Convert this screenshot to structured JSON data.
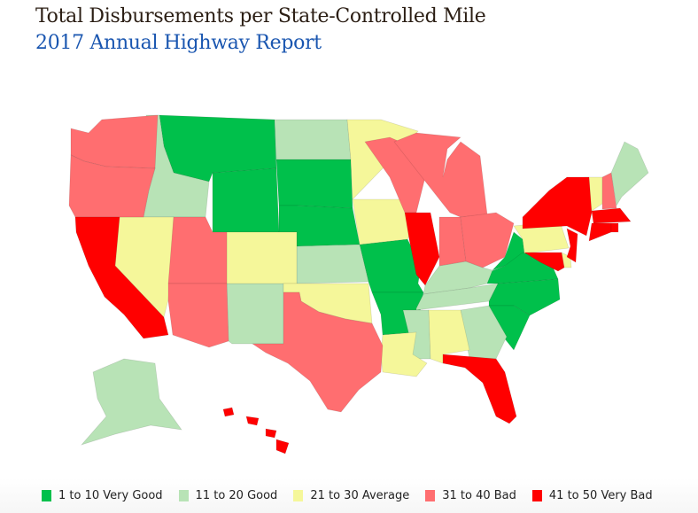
{
  "title": "Total Disbursements per State-Controlled Mile",
  "subtitle": "2017 Annual Highway Report",
  "chart_data": {
    "type": "choropleth",
    "title": "Total Disbursements per State-Controlled Mile",
    "subtitle": "2017 Annual Highway Report",
    "legend_placement": "bottom",
    "legend": [
      {
        "label": "1 to 10 Very Good",
        "color": "#00c04b"
      },
      {
        "label": "11 to 20 Good",
        "color": "#b8e3b6"
      },
      {
        "label": "21 to 30 Average",
        "color": "#f5f79a"
      },
      {
        "label": "31 to 40 Bad",
        "color": "#ff6e70"
      },
      {
        "label": "41 to 50 Very Bad",
        "color": "#ff0000"
      }
    ],
    "regions": {
      "MT": 0,
      "WY": 0,
      "SD": 0,
      "NE": 0,
      "MO": 0,
      "AR": 0,
      "WV": 0,
      "VA": 0,
      "NC": 0,
      "SC": 0,
      "ND": 1,
      "ID": 1,
      "KS": 1,
      "NM": 1,
      "KY": 1,
      "TN": 1,
      "MS": 1,
      "GA": 1,
      "ME": 1,
      "AK": 1,
      "MN": 2,
      "IA": 2,
      "NV": 2,
      "CO": 2,
      "OK": 2,
      "LA": 2,
      "AL": 2,
      "PA": 2,
      "VT": 2,
      "DE": 2,
      "WA": 3,
      "OR": 3,
      "UT": 3,
      "AZ": 3,
      "TX": 3,
      "WI": 3,
      "MI": 3,
      "IN": 3,
      "OH": 3,
      "NH": 3,
      "CA": 4,
      "IL": 4,
      "FL": 4,
      "NY": 4,
      "MA": 4,
      "CT": 4,
      "RI": 4,
      "NJ": 4,
      "MD": 4,
      "HI": 4
    }
  }
}
